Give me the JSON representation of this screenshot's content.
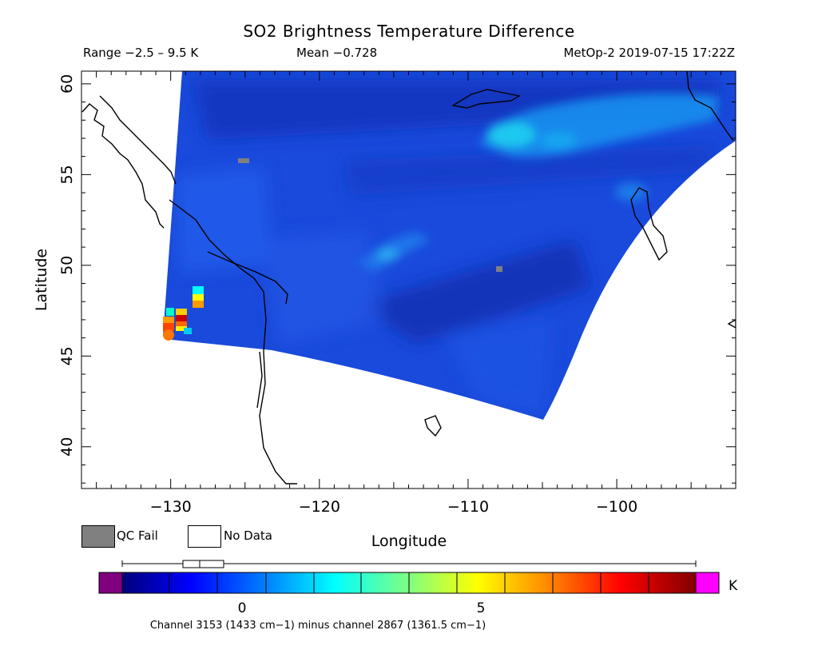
{
  "title": "SO2 Brightness Temperature Difference",
  "header": {
    "range": "Range −2.5 – 9.5 K",
    "mean": "Mean −0.728",
    "satellite_time": "MetOp-2 2019-07-15 17:22Z"
  },
  "axes": {
    "xlabel": "Longitude",
    "ylabel": "Latitude",
    "x_ticks": [
      "−130",
      "−120",
      "−110",
      "−100"
    ],
    "y_ticks": [
      "60",
      "55",
      "50",
      "45",
      "40"
    ],
    "xlim": [
      -136,
      -92
    ],
    "ylim": [
      37.7,
      60.7
    ]
  },
  "legend": {
    "qc_fail": "QC Fail",
    "no_data": "No Data",
    "qc_fail_color": "#808080",
    "no_data_color": "#ffffff"
  },
  "colorbar": {
    "unit": "K",
    "tick_labels": [
      "0",
      "5"
    ],
    "range": [
      -2.5,
      9.5
    ],
    "underflow_color": "#800080",
    "overflow_color": "#ff00ff",
    "boxplot": {
      "min": -2.5,
      "q1": -1.8,
      "median": -1.1,
      "q3": -0.9,
      "max": 9.5
    }
  },
  "channel_note": "Channel 3153 (1433 cm−1) minus channel 2867 (1361.5 cm−1)",
  "features": {
    "plume_colors": [
      "#ff6600",
      "#ff9900",
      "#ffff00",
      "#cc0000",
      "#00ffff"
    ],
    "background_color": "#1a4adc"
  }
}
